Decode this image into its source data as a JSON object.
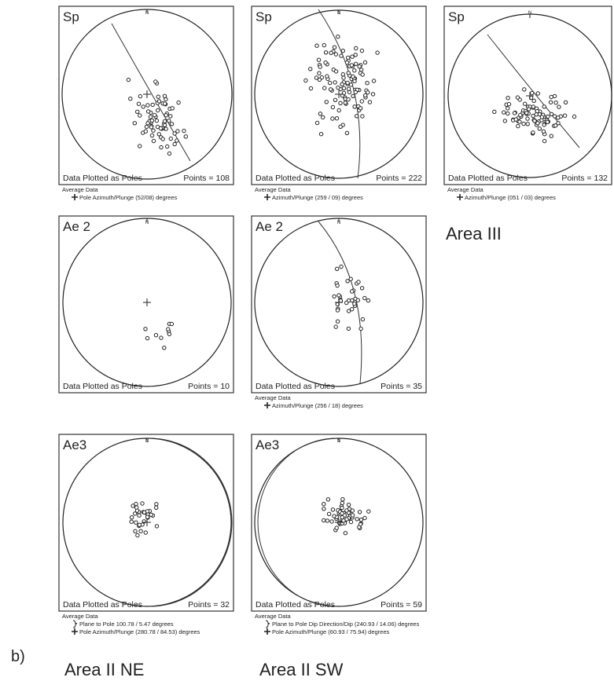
{
  "panels": [
    {
      "label": "Sp",
      "north": "N",
      "footer_left": "Data Plotted as Poles",
      "footer_right": "Points = 108",
      "average_title": "Average Data",
      "average_lines": [
        "Pole Azimuth/Plunge (52/08) degrees"
      ]
    },
    {
      "label": "Sp",
      "north": "N",
      "footer_left": "Data Plotted as Poles",
      "footer_right": "Points = 222",
      "average_title": "Average Data",
      "average_lines": [
        "Azimuth/Plunge (259 / 09) degrees"
      ]
    },
    {
      "label": "Sp",
      "north": "N",
      "footer_left": "Data Plotted as Poles",
      "footer_right": "Points = 132",
      "average_title": "Average Data",
      "average_lines": [
        "Azimuth/Plunge (051 / 03) degrees"
      ]
    },
    {
      "label": "Ae 2",
      "north": "N",
      "footer_left": "Data Plotted as Poles",
      "footer_right": "Points = 10"
    },
    {
      "label": "Ae 2",
      "north": "N",
      "footer_left": "Data Plotted as Poles",
      "footer_right": "Points = 35",
      "average_title": "Average Data",
      "average_lines": [
        "Azimuth/Plunge (256 / 18) degrees"
      ]
    },
    {
      "label": "Ae3",
      "north": "N",
      "footer_left": "Data Plotted as Poles",
      "footer_right": "Points = 32",
      "average_title": "Average Data",
      "average_lines": [
        "Plane to Pole 100.78 / 5.47 degrees",
        "Pole Azimuth/Plunge (280.78 / 84.53) degrees"
      ]
    },
    {
      "label": "Ae3",
      "north": "N",
      "footer_left": "Data Plotted as Poles",
      "footer_right": "Points = 59",
      "average_title": "Average Data",
      "average_lines": [
        "Plane to Pole Dip Direction/Dip (240.93 / 14.06) degrees",
        "Pole Azimuth/Plunge (60.93 / 75.94) degrees"
      ]
    }
  ],
  "area_labels": {
    "area_iii": "Area III",
    "panel_letter": "b)",
    "area_ii_ne": "Area II NE",
    "area_ii_sw": "Area II SW"
  }
}
